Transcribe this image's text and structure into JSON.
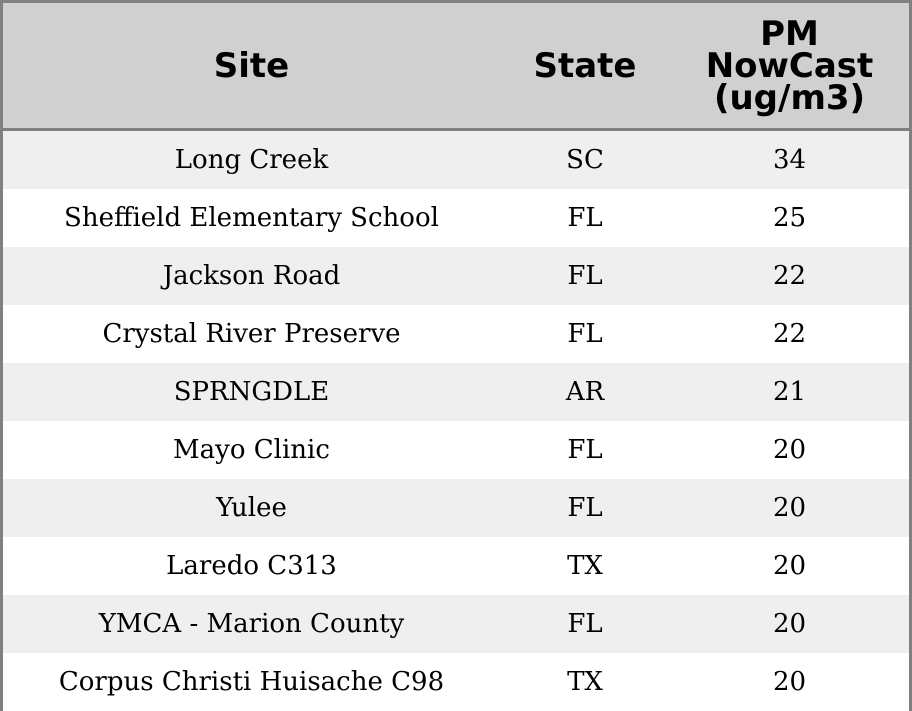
{
  "chart_data": {
    "type": "table",
    "columns": [
      {
        "key": "site",
        "label_lines": [
          "Site"
        ]
      },
      {
        "key": "state",
        "label_lines": [
          "State"
        ]
      },
      {
        "key": "pm",
        "label_lines": [
          "PM",
          "NowCast",
          "(ug/m3)"
        ]
      }
    ],
    "rows": [
      {
        "site": "Long Creek",
        "state": "SC",
        "pm": "34"
      },
      {
        "site": "Sheffield Elementary School",
        "state": "FL",
        "pm": "25"
      },
      {
        "site": "Jackson Road",
        "state": "FL",
        "pm": "22"
      },
      {
        "site": "Crystal River Preserve",
        "state": "FL",
        "pm": "22"
      },
      {
        "site": "SPRNGDLE",
        "state": "AR",
        "pm": "21"
      },
      {
        "site": "Mayo Clinic",
        "state": "FL",
        "pm": "20"
      },
      {
        "site": "Yulee",
        "state": "FL",
        "pm": "20"
      },
      {
        "site": "Laredo C313",
        "state": "TX",
        "pm": "20"
      },
      {
        "site": "YMCA - Marion County",
        "state": "FL",
        "pm": "20"
      },
      {
        "site": "Corpus Christi Huisache C98",
        "state": "TX",
        "pm": "20"
      }
    ],
    "colors": {
      "header_bg": "#d0d0d0",
      "row_alt_bg": "#efefef",
      "row_bg": "#ffffff",
      "border": "#808080"
    }
  }
}
